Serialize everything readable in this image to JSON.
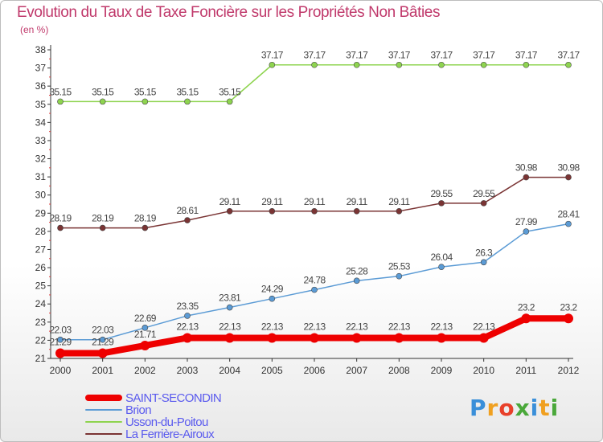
{
  "chart_data": {
    "type": "line",
    "title": "Evolution du Taux de Taxe Foncière sur les Propriétés Non Bâties",
    "ylabel": "(en %)",
    "xlabel": "",
    "ylim": [
      21,
      38
    ],
    "yticks": [
      "21",
      "22",
      "23",
      "24",
      "25",
      "26",
      "27",
      "28",
      "29",
      "30",
      "31",
      "32",
      "33",
      "34",
      "35",
      "36",
      "37",
      "38"
    ],
    "categories": [
      "2000",
      "2001",
      "2002",
      "2003",
      "2004",
      "2005",
      "2006",
      "2007",
      "2008",
      "2009",
      "2010",
      "2011",
      "2012"
    ],
    "grid": false,
    "series": [
      {
        "name": "SAINT-SECONDIN",
        "color": "#ee0000",
        "values": [
          21.29,
          21.29,
          21.71,
          22.13,
          22.13,
          22.13,
          22.13,
          22.13,
          22.13,
          22.13,
          22.13,
          23.2,
          23.2
        ],
        "labels": [
          "21.29",
          "21.29",
          "21.71",
          "22.13",
          "22.13",
          "22.13",
          "22.13",
          "22.13",
          "22.13",
          "22.13",
          "22.13",
          "23.2",
          "23.2"
        ]
      },
      {
        "name": "Brion",
        "color": "#5b9bd5",
        "values": [
          22.03,
          22.03,
          22.69,
          23.35,
          23.81,
          24.29,
          24.78,
          25.28,
          25.53,
          26.04,
          26.3,
          27.99,
          28.41
        ],
        "labels": [
          "22.03",
          "22.03",
          "22.69",
          "23.35",
          "23.81",
          "24.29",
          "24.78",
          "25.28",
          "25.53",
          "26.04",
          "26.3",
          "27.99",
          "28.41"
        ]
      },
      {
        "name": "Usson-du-Poitou",
        "color": "#8ed44f",
        "values": [
          35.15,
          35.15,
          35.15,
          35.15,
          35.15,
          37.17,
          37.17,
          37.17,
          37.17,
          37.17,
          37.17,
          37.17,
          37.17
        ],
        "labels": [
          "35.15",
          "35.15",
          "35.15",
          "35.15",
          "35.15",
          "37.17",
          "37.17",
          "37.17",
          "37.17",
          "37.17",
          "37.17",
          "37.17",
          "37.17"
        ]
      },
      {
        "name": "La Ferrière-Airoux",
        "color": "#7a3434",
        "values": [
          28.19,
          28.19,
          28.19,
          28.61,
          29.11,
          29.11,
          29.11,
          29.11,
          29.11,
          29.55,
          29.55,
          30.98,
          30.98
        ],
        "labels": [
          "28.19",
          "28.19",
          "28.19",
          "28.61",
          "29.11",
          "29.11",
          "29.11",
          "29.11",
          "29.11",
          "29.55",
          "29.55",
          "30.98",
          "30.98"
        ]
      }
    ],
    "legend_position": "bottom-left"
  },
  "brand": {
    "logo_text": "Proxiti",
    "letters": [
      "P",
      "r",
      "o",
      "x",
      "i",
      "t",
      "i"
    ],
    "letter_colors": [
      "#3a8fd9",
      "#f0a020",
      "#e8402a",
      "#4aa83a",
      "#3a8fd9",
      "#f0a020",
      "#4aa83a"
    ]
  },
  "colors": {
    "title": "#c0396b",
    "axis": "#333333",
    "tick_red": "#e04040",
    "legend_text": "#5a5aee"
  }
}
